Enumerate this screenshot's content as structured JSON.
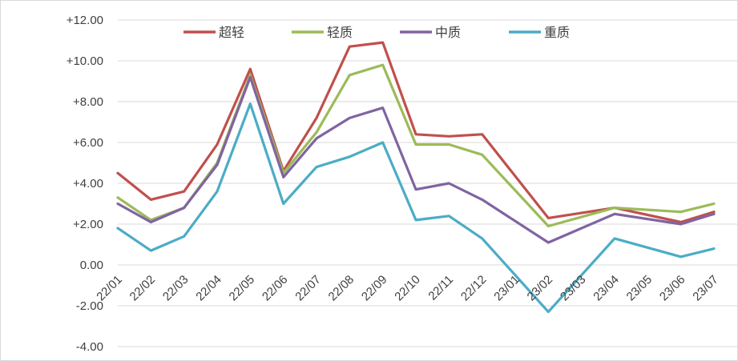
{
  "chart_data": {
    "type": "line",
    "categories": [
      "22/01",
      "22/02",
      "22/03",
      "22/04",
      "22/05",
      "22/06",
      "22/07",
      "22/08",
      "22/09",
      "22/10",
      "22/11",
      "22/12",
      "23/01",
      "23/02",
      "23/03",
      "23/04",
      "23/05",
      "23/06",
      "23/07"
    ],
    "y_tick_labels": [
      "+12.00",
      "+10.00",
      "+8.00",
      "+6.00",
      "+4.00",
      "+2.00",
      "0.00",
      "-2.00",
      "-4.00"
    ],
    "y_tick_values": [
      12,
      10,
      8,
      6,
      4,
      2,
      0,
      -2,
      -4
    ],
    "negative_tick_color": "#ff0000",
    "ylim": [
      -4,
      12
    ],
    "grid": "horizontal",
    "legend_position": "top",
    "series": [
      {
        "name": "超轻",
        "color": "#c0504d",
        "values": [
          4.5,
          3.2,
          3.6,
          5.9,
          9.6,
          4.6,
          7.2,
          10.7,
          10.9,
          6.4,
          6.3,
          6.4,
          null,
          2.3,
          null,
          2.8,
          null,
          2.1,
          2.6
        ],
        "segments": [
          [
            0,
            1,
            2,
            3,
            4,
            5,
            6,
            7,
            8,
            9,
            10,
            11
          ],
          [
            11,
            11.35,
            12,
            13
          ],
          [
            13,
            15
          ],
          [
            15,
            17,
            18
          ]
        ],
        "extra": {
          "11.35": 6.45
        }
      },
      {
        "name": "轻质",
        "color": "#9bbb59",
        "values": [
          3.3,
          2.2,
          2.8,
          5.0,
          9.3,
          4.5,
          6.5,
          9.3,
          9.8,
          5.9,
          5.9,
          5.4,
          null,
          1.9,
          null,
          2.8,
          null,
          2.6,
          3.0
        ]
      },
      {
        "name": "中质",
        "color": "#8064a2",
        "values": [
          3.0,
          2.1,
          2.8,
          4.9,
          9.2,
          4.3,
          6.2,
          7.2,
          7.7,
          3.7,
          4.0,
          3.2,
          null,
          1.1,
          null,
          2.5,
          null,
          2.0,
          2.5
        ]
      },
      {
        "name": "重质",
        "color": "#4bacc6",
        "values": [
          1.8,
          0.7,
          1.4,
          3.6,
          7.9,
          3.0,
          4.8,
          5.3,
          6.0,
          2.2,
          2.4,
          1.3,
          null,
          -2.3,
          null,
          1.3,
          null,
          0.4,
          0.8
        ]
      }
    ]
  }
}
